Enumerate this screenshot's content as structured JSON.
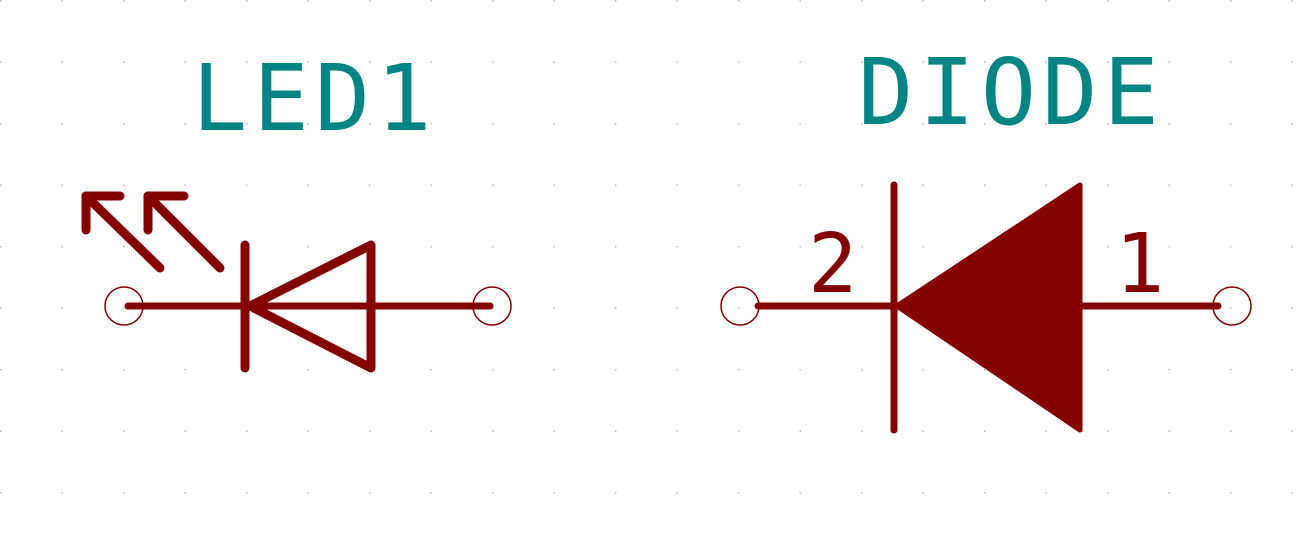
{
  "schematic": {
    "colors": {
      "background": "#ffffff",
      "grid_dot": "#b4b4b4",
      "symbol": "#840000",
      "reference": "#008484",
      "pin_end": "#840000"
    },
    "components": [
      {
        "reference": "LED1",
        "symbol": "led-icon",
        "pins": []
      },
      {
        "reference": "DIODE",
        "symbol": "diode-icon",
        "pins": [
          {
            "number": "2"
          },
          {
            "number": "1"
          }
        ]
      }
    ]
  }
}
